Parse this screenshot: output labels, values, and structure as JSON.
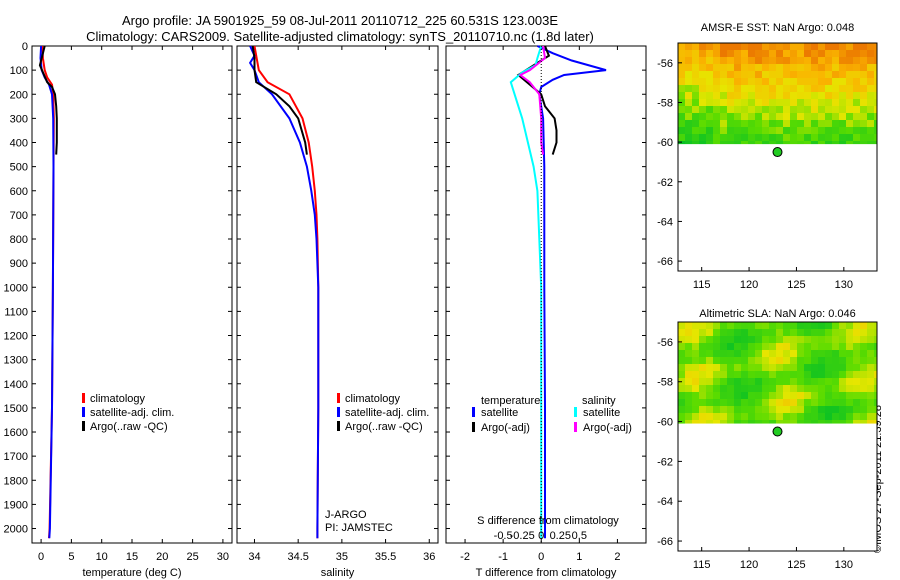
{
  "header": {
    "line1": "Argo profile: JA 5901925_59 08-Jul-2011 20110712_225 60.531S 123.003E",
    "line2": "Climatology: CARS2009. Satellite-adjusted climatology: synTS_20110710.nc (1.8d later)"
  },
  "credit": "©IMOS 27-Sep-2011 21:39:28",
  "colors": {
    "climatology": "#ff0000",
    "satellite": "#0000ff",
    "argo": "#000000",
    "sat_s": "#00ffff",
    "argo_s": "#ff00ff"
  },
  "chart_data": [
    {
      "type": "line",
      "id": "temperature",
      "xlabel": "temperature (deg C)",
      "xlim": [
        -1.5,
        31.5
      ],
      "ylim": [
        2060,
        0
      ],
      "y_reversed": true,
      "xticks": [
        0,
        5,
        10,
        15,
        20,
        25,
        30
      ],
      "yticks": [
        0,
        100,
        200,
        300,
        400,
        500,
        600,
        700,
        800,
        900,
        1000,
        1100,
        1200,
        1300,
        1400,
        1500,
        1600,
        1700,
        1800,
        1900,
        2000
      ],
      "legend": [
        "climatology",
        "satellite-adj. clim.",
        "Argo(..raw -QC)"
      ],
      "series": [
        {
          "name": "climatology",
          "color": "#ff0000",
          "depth": [
            0,
            50,
            100,
            130,
            160,
            200,
            300,
            500,
            1000,
            1500,
            2000,
            2040
          ],
          "values": [
            0.2,
            0.3,
            0.6,
            1.0,
            1.8,
            2.0,
            2.1,
            2.05,
            1.95,
            1.8,
            1.4,
            1.3
          ]
        },
        {
          "name": "satellite-adj. clim.",
          "color": "#0000ff",
          "depth": [
            0,
            50,
            100,
            130,
            160,
            200,
            300,
            500,
            1000,
            1500,
            2000,
            2040
          ],
          "values": [
            0.0,
            -0.1,
            0.1,
            0.6,
            1.3,
            1.8,
            2.0,
            2.05,
            1.95,
            1.8,
            1.45,
            1.35
          ]
        },
        {
          "name": "Argo(..raw -QC)",
          "color": "#000000",
          "depth": [
            0,
            40,
            80,
            120,
            150,
            170,
            200,
            250,
            300,
            400,
            450
          ],
          "values": [
            0.6,
            0.2,
            -0.2,
            0.5,
            1.0,
            1.8,
            2.3,
            2.5,
            2.6,
            2.6,
            2.5
          ]
        }
      ]
    },
    {
      "type": "line",
      "id": "salinity",
      "xlabel": "salinity",
      "xlim": [
        33.8,
        36.1
      ],
      "ylim": [
        2060,
        0
      ],
      "y_reversed": true,
      "xticks": [
        34,
        34.5,
        35,
        35.5,
        36
      ],
      "xticklabels": [
        "34",
        "34.5",
        "35",
        "35.5",
        "36"
      ],
      "legend": [
        "climatology",
        "satellite-adj. clim.",
        "Argo(..raw -QC)"
      ],
      "annotation": [
        "J-ARGO",
        "PI: JAMSTEC"
      ],
      "series": [
        {
          "name": "climatology",
          "color": "#ff0000",
          "depth": [
            0,
            100,
            150,
            200,
            300,
            400,
            500,
            600,
            700,
            800,
            1000,
            1200,
            1500,
            2000,
            2040
          ],
          "values": [
            34.0,
            34.05,
            34.15,
            34.4,
            34.55,
            34.62,
            34.66,
            34.69,
            34.71,
            34.72,
            34.73,
            34.73,
            34.73,
            34.72,
            34.72
          ]
        },
        {
          "name": "satellite-adj. clim.",
          "color": "#0000ff",
          "depth": [
            0,
            40,
            70,
            100,
            150,
            200,
            300,
            400,
            500,
            600,
            700,
            800,
            1000,
            1200,
            1500,
            2000,
            2040
          ],
          "values": [
            33.95,
            34.0,
            33.95,
            34.0,
            34.05,
            34.2,
            34.4,
            34.52,
            34.6,
            34.65,
            34.69,
            34.71,
            34.73,
            34.73,
            34.73,
            34.72,
            34.72
          ]
        },
        {
          "name": "Argo(..raw -QC)",
          "color": "#000000",
          "depth": [
            0,
            50,
            100,
            150,
            200,
            250,
            300,
            400,
            450
          ],
          "values": [
            33.98,
            34.0,
            34.0,
            34.02,
            34.25,
            34.4,
            34.5,
            34.58,
            34.6
          ]
        }
      ]
    },
    {
      "type": "line",
      "id": "difference",
      "xlabel": "T difference from climatology",
      "xlabel_top": "S difference from climatology",
      "xlim": [
        -2.5,
        2.75
      ],
      "ylim": [
        2060,
        0
      ],
      "y_reversed": true,
      "xticks": [
        -2,
        -1,
        0,
        1,
        2
      ],
      "s_xticks": [
        -1,
        -0.5,
        0,
        0.5,
        1
      ],
      "s_xticklabels": [
        "-0.5",
        "-0.25",
        "0",
        "0.25",
        "0.5"
      ],
      "legend_titles": [
        "temperature",
        "salinity"
      ],
      "legend": [
        "satellite",
        "Argo(-adj)",
        "satellite",
        "Argo(-adj)"
      ],
      "series": [
        {
          "name": "temperature satellite",
          "color": "#0000ff",
          "depth": [
            0,
            30,
            60,
            100,
            120,
            140,
            170,
            200,
            300,
            500,
            1000,
            1500,
            2000,
            2040
          ],
          "values": [
            -0.1,
            0.3,
            0.8,
            1.7,
            0.6,
            0.3,
            0.0,
            -0.05,
            0.05,
            0.08,
            0.08,
            0.1,
            0.1,
            0.1
          ]
        },
        {
          "name": "temperature Argo(-adj)",
          "color": "#000000",
          "depth": [
            0,
            40,
            80,
            120,
            160,
            200,
            250,
            300,
            350,
            400,
            450
          ],
          "values": [
            0.1,
            0.2,
            -0.2,
            -0.6,
            -0.3,
            0.0,
            0.1,
            0.35,
            0.4,
            0.4,
            0.3
          ]
        },
        {
          "name": "salinity satellite",
          "color": "#00ffff",
          "depth": [
            0,
            50,
            80,
            110,
            150,
            200,
            300,
            400,
            500,
            600,
            800,
            1000,
            1500,
            2000,
            2040
          ],
          "values": [
            0.0,
            -0.1,
            -0.15,
            -0.5,
            -0.8,
            -0.7,
            -0.5,
            -0.35,
            -0.2,
            -0.1,
            -0.05,
            0.0,
            0.0,
            0.0,
            0.0
          ]
        },
        {
          "name": "salinity Argo(-adj)",
          "color": "#ff00ff",
          "depth": [
            0,
            50,
            100,
            120,
            150,
            200,
            300,
            400,
            450
          ],
          "values": [
            0.05,
            0.1,
            -0.3,
            -0.55,
            -0.3,
            -0.05,
            0.0,
            0.0,
            0.05
          ]
        }
      ]
    },
    {
      "type": "heatmap",
      "id": "sst-map",
      "title": "AMSR-E SST: NaN Argo: 0.048",
      "xlim": [
        112.5,
        133.5
      ],
      "ylim": [
        -66.5,
        -55
      ],
      "xticks": [
        115,
        120,
        125,
        130
      ],
      "yticks": [
        -56,
        -58,
        -60,
        -62,
        -64,
        -66
      ],
      "profile_location": [
        123.0,
        -60.5
      ]
    },
    {
      "type": "heatmap",
      "id": "sla-map",
      "title": "Altimetric SLA: NaN Argo: 0.046",
      "xlim": [
        112.5,
        133.5
      ],
      "ylim": [
        -66.5,
        -55
      ],
      "xticks": [
        115,
        120,
        125,
        130
      ],
      "yticks": [
        -56,
        -58,
        -60,
        -62,
        -64,
        -66
      ],
      "profile_location": [
        123.0,
        -60.5
      ]
    }
  ]
}
